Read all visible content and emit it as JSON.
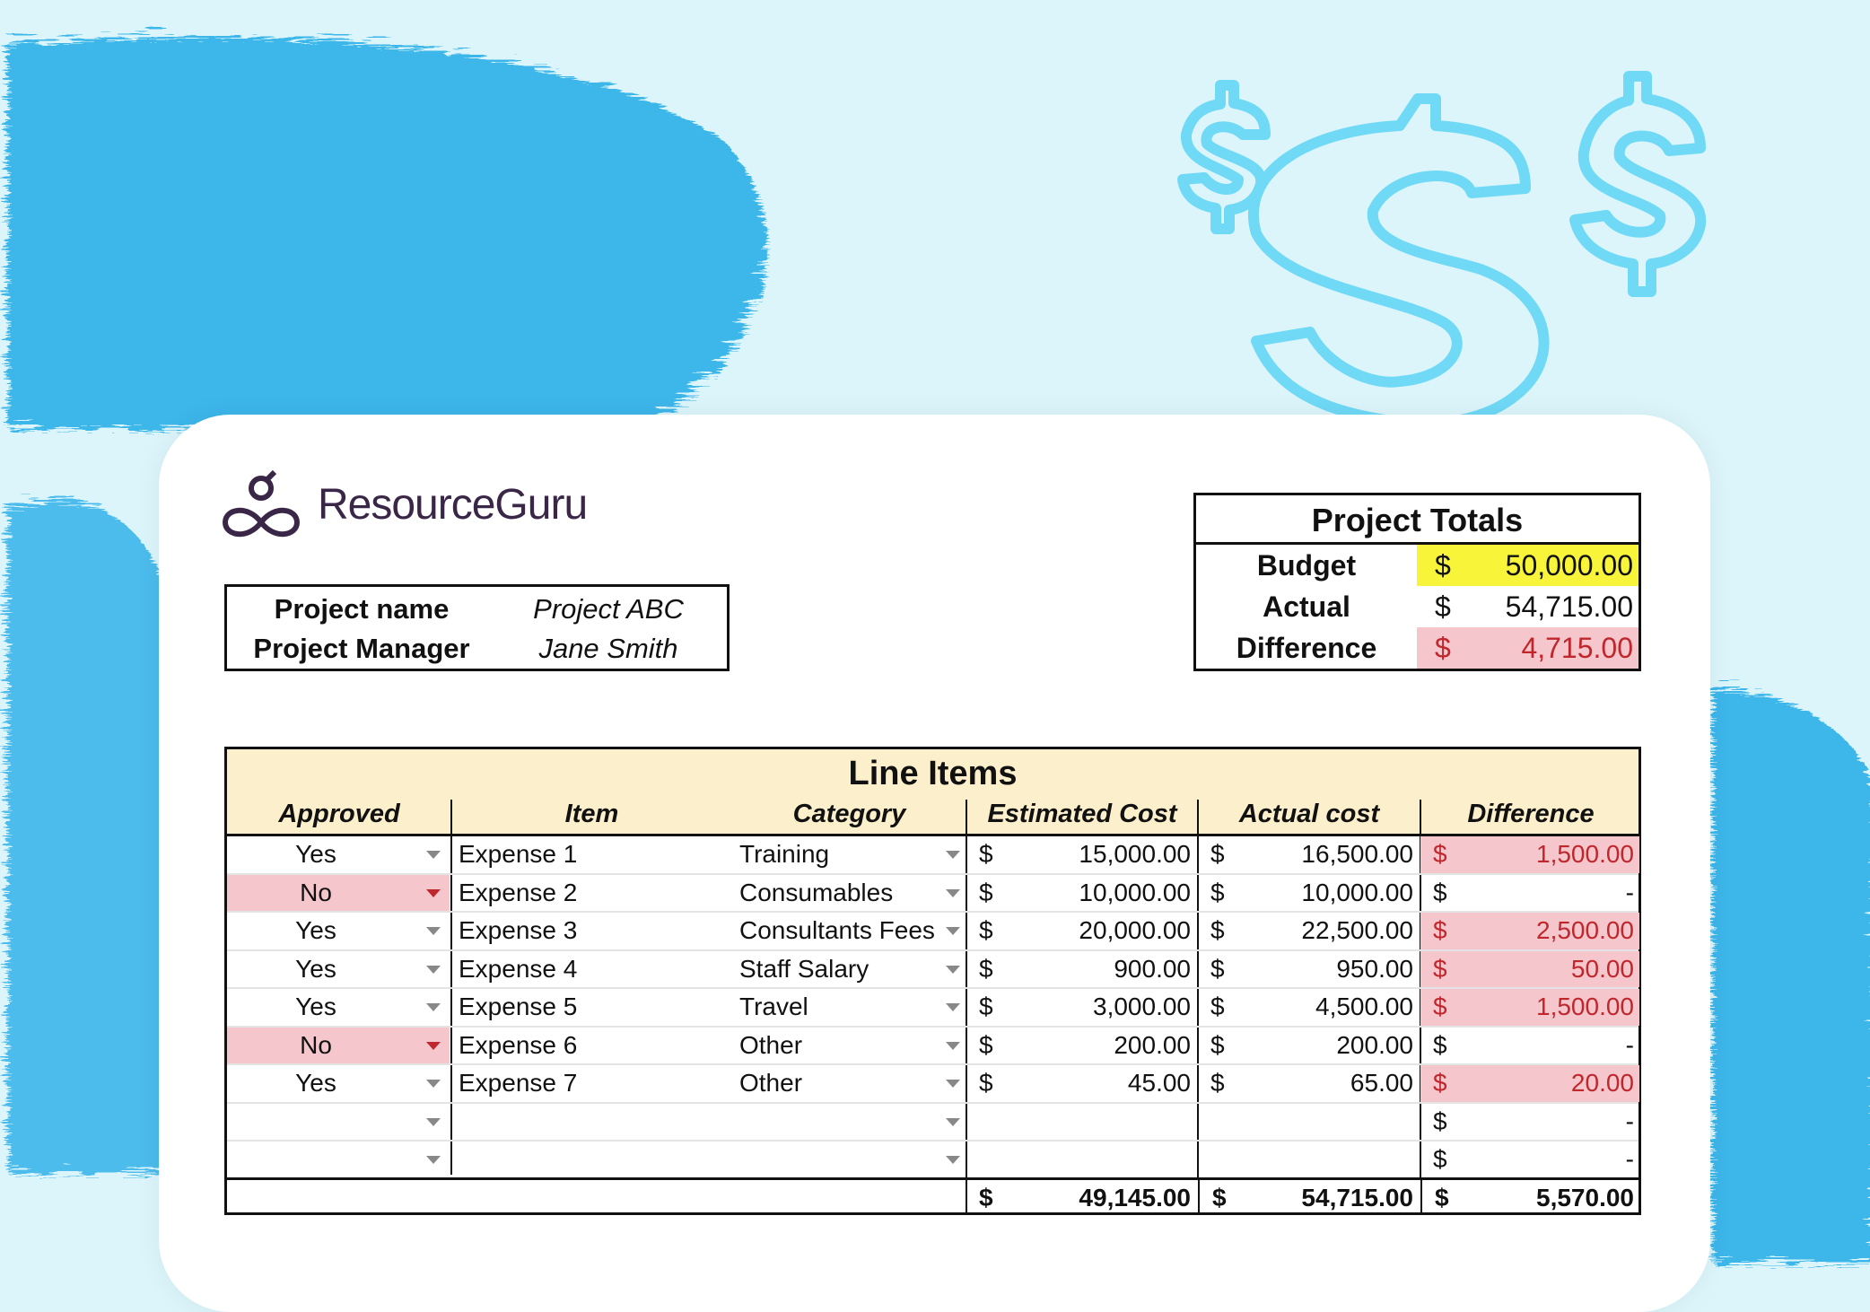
{
  "brand": {
    "name": "ResourceGuru",
    "color": "#3a2748"
  },
  "project": {
    "name_label": "Project name",
    "name_value": "Project ABC",
    "manager_label": "Project Manager",
    "manager_value": "Jane Smith"
  },
  "totals": {
    "title": "Project Totals",
    "rows": [
      {
        "label": "Budget",
        "currency": "$",
        "amount": "50,000.00",
        "highlight": "#f8f43a"
      },
      {
        "label": "Actual",
        "currency": "$",
        "amount": "54,715.00"
      },
      {
        "label": "Difference",
        "currency": "$",
        "amount": "4,715.00",
        "highlight": "#f5c6cc"
      }
    ]
  },
  "line_items": {
    "title": "Line Items",
    "columns": [
      "Approved",
      "Item",
      "Category",
      "Estimated Cost",
      "Actual cost",
      "Difference"
    ],
    "rows": [
      {
        "approved": "Yes",
        "item": "Expense 1",
        "category": "Training",
        "est_cur": "$",
        "est": "15,000.00",
        "act_cur": "$",
        "act": "16,500.00",
        "diff_cur": "$",
        "diff": "1,500.00",
        "over": true
      },
      {
        "approved": "No",
        "item": "Expense 2",
        "category": "Consumables",
        "est_cur": "$",
        "est": "10,000.00",
        "act_cur": "$",
        "act": "10,000.00",
        "diff_cur": "$",
        "diff": "-",
        "over": false
      },
      {
        "approved": "Yes",
        "item": "Expense 3",
        "category": "Consultants Fees",
        "est_cur": "$",
        "est": "20,000.00",
        "act_cur": "$",
        "act": "22,500.00",
        "diff_cur": "$",
        "diff": "2,500.00",
        "over": true
      },
      {
        "approved": "Yes",
        "item": "Expense 4",
        "category": "Staff Salary",
        "est_cur": "$",
        "est": "900.00",
        "act_cur": "$",
        "act": "950.00",
        "diff_cur": "$",
        "diff": "50.00",
        "over": true
      },
      {
        "approved": "Yes",
        "item": "Expense 5",
        "category": "Travel",
        "est_cur": "$",
        "est": "3,000.00",
        "act_cur": "$",
        "act": "4,500.00",
        "diff_cur": "$",
        "diff": "1,500.00",
        "over": true
      },
      {
        "approved": "No",
        "item": "Expense 6",
        "category": "Other",
        "est_cur": "$",
        "est": "200.00",
        "act_cur": "$",
        "act": "200.00",
        "diff_cur": "$",
        "diff": "-",
        "over": false
      },
      {
        "approved": "Yes",
        "item": "Expense 7",
        "category": "Other",
        "est_cur": "$",
        "est": "45.00",
        "act_cur": "$",
        "act": "65.00",
        "diff_cur": "$",
        "diff": "20.00",
        "over": true
      },
      {
        "approved": "",
        "item": "",
        "category": "",
        "est_cur": "",
        "est": "",
        "act_cur": "",
        "act": "",
        "diff_cur": "$",
        "diff": "-",
        "over": false
      },
      {
        "approved": "",
        "item": "",
        "category": "",
        "est_cur": "",
        "est": "",
        "act_cur": "",
        "act": "",
        "diff_cur": "$",
        "diff": "-",
        "over": false
      }
    ],
    "total": {
      "est_cur": "$",
      "est": "49,145.00",
      "act_cur": "$",
      "act": "54,715.00",
      "diff_cur": "$",
      "diff": "5,570.00"
    }
  },
  "colors": {
    "background": "#dcf5fb",
    "brush": "#3cb6ea",
    "dollar_outline": "#6fd9f6",
    "header": "#fcefcc",
    "negative_fill": "#f5c6cc",
    "negative_text": "#c0272d"
  }
}
